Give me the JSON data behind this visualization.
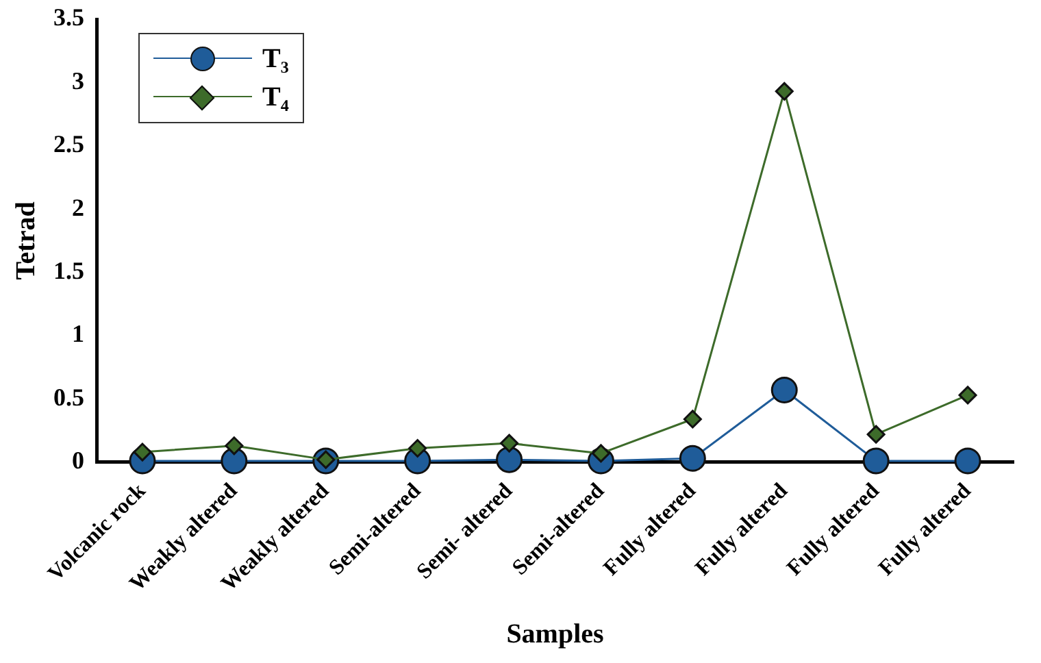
{
  "chart_data": {
    "type": "line",
    "xlabel": "Samples",
    "ylabel": "Tetrad",
    "categories": [
      "Volcanic rock",
      "Weakly altered",
      "Weakly altered",
      "Semi-altered",
      "Semi- altered",
      "Semi-altered",
      "Fully altered",
      "Fully altered",
      "Fully altered",
      "Fully altered"
    ],
    "series": [
      {
        "name": "T₃",
        "color": "#1f5c99",
        "marker": "circle",
        "values": [
          0.01,
          0.01,
          0.01,
          0.01,
          0.02,
          0.01,
          0.03,
          0.57,
          0.01,
          0.01
        ]
      },
      {
        "name": "T₄",
        "color": "#3d6b2a",
        "marker": "diamond",
        "values": [
          0.08,
          0.13,
          0.02,
          0.11,
          0.15,
          0.07,
          0.34,
          2.93,
          0.22,
          0.53
        ]
      }
    ],
    "ylim": [
      0,
      3.5
    ],
    "yticks": [
      0,
      0.5,
      1,
      1.5,
      2,
      2.5,
      3,
      3.5
    ],
    "grid": false,
    "legend": "top left",
    "line_style": "solid"
  }
}
